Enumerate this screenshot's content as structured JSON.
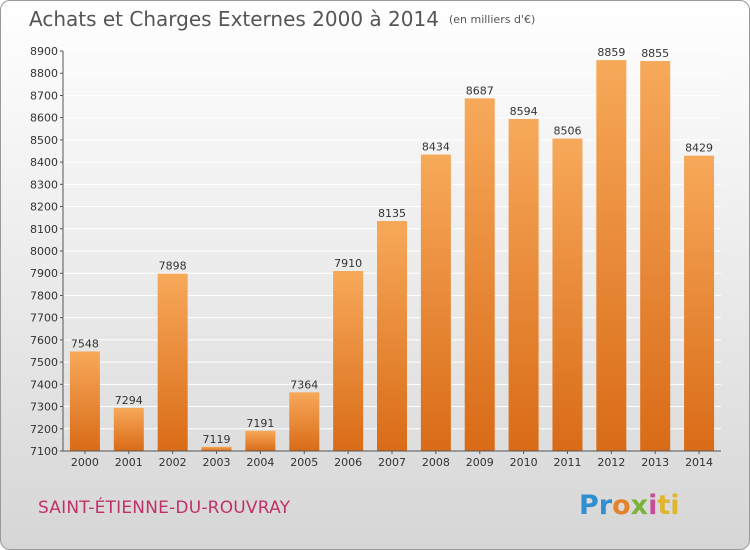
{
  "header": {
    "title": "Achats et Charges Externes 2000 à 2014",
    "unit": "(en milliers d'€)"
  },
  "footer": {
    "city": "SAINT-ÉTIENNE-DU-ROUVRAY",
    "logo_letters": [
      "Pr",
      "o",
      "x",
      "i",
      "ti"
    ]
  },
  "colors": {
    "bar_light": "#f7a95a",
    "bar_dark": "#d96b17",
    "grid": "#ffffff",
    "title": "#555555",
    "city": "#c0306a"
  },
  "chart_data": {
    "type": "bar",
    "title": "Achats et Charges Externes 2000 à 2014",
    "subtitle": "(en milliers d'€)",
    "xlabel": "",
    "ylabel": "",
    "categories": [
      "2000",
      "2001",
      "2002",
      "2003",
      "2004",
      "2005",
      "2006",
      "2007",
      "2008",
      "2009",
      "2010",
      "2011",
      "2012",
      "2013",
      "2014"
    ],
    "values": [
      7548,
      7294,
      7898,
      7119,
      7191,
      7364,
      7910,
      8135,
      8434,
      8687,
      8594,
      8506,
      8859,
      8855,
      8429
    ],
    "ylim": [
      7100,
      8900
    ],
    "yticks": [
      "7100",
      "7200",
      "7300",
      "7400",
      "7500",
      "7600",
      "7700",
      "7800",
      "7900",
      "8000",
      "8100",
      "8200",
      "8300",
      "8400",
      "8500",
      "8600",
      "8700",
      "8800",
      "8900"
    ],
    "grid": true,
    "data_labels": true
  }
}
